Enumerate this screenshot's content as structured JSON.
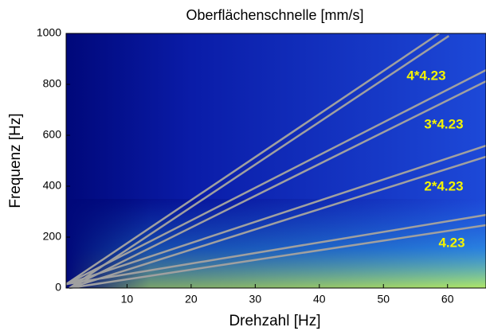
{
  "chart_data": {
    "type": "line",
    "title": "Oberflächenschnelle [mm/s]",
    "x_label": "Drehzahl [Hz]",
    "y_label": "Frequenz [Hz]",
    "xlim": [
      0.5,
      66
    ],
    "ylim": [
      0,
      1000
    ],
    "xticks": [
      10,
      20,
      30,
      40,
      50,
      60
    ],
    "yticks": [
      0,
      200,
      400,
      600,
      800,
      1000
    ],
    "color": "#a0a0a0",
    "series": [
      {
        "x": [
          0.5,
          66
        ],
        "values": [
          15,
          287
        ]
      },
      {
        "x": [
          1,
          66
        ],
        "values": [
          0,
          247
        ]
      },
      {
        "x": [
          0.5,
          66
        ],
        "values": [
          15,
          559
        ]
      },
      {
        "x": [
          1,
          66
        ],
        "values": [
          0,
          516
        ]
      },
      {
        "x": [
          0.5,
          66
        ],
        "values": [
          15,
          856
        ]
      },
      {
        "x": [
          1,
          66
        ],
        "values": [
          0,
          812
        ]
      },
      {
        "x": [
          0.5,
          58.7
        ],
        "values": [
          15,
          1000
        ]
      },
      {
        "x": [
          1,
          60.2
        ],
        "values": [
          0,
          990
        ]
      }
    ],
    "annotations": [
      "4*4.23",
      "3*4.23",
      "2*4.23",
      "4.23"
    ]
  }
}
